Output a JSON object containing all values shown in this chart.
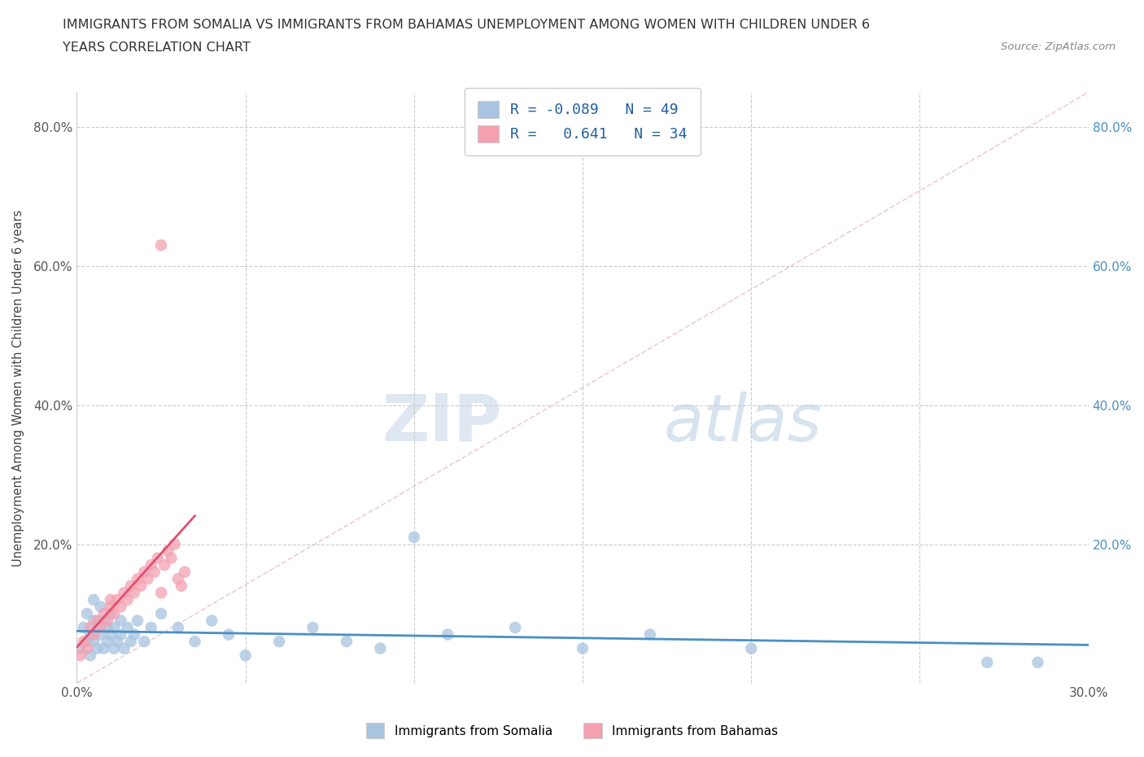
{
  "title_line1": "IMMIGRANTS FROM SOMALIA VS IMMIGRANTS FROM BAHAMAS UNEMPLOYMENT AMONG WOMEN WITH CHILDREN UNDER 6",
  "title_line2": "YEARS CORRELATION CHART",
  "source": "Source: ZipAtlas.com",
  "ylabel": "Unemployment Among Women with Children Under 6 years",
  "xlim": [
    0.0,
    0.3
  ],
  "ylim": [
    0.0,
    0.85
  ],
  "yticks": [
    0.0,
    0.2,
    0.4,
    0.6,
    0.8
  ],
  "xticks": [
    0.0,
    0.05,
    0.1,
    0.15,
    0.2,
    0.25,
    0.3
  ],
  "xtick_labels": [
    "0.0%",
    "",
    "",
    "",
    "",
    "",
    "30.0%"
  ],
  "ytick_labels_left": [
    "",
    "20.0%",
    "40.0%",
    "60.0%",
    "80.0%"
  ],
  "ytick_labels_right": [
    "",
    "20.0%",
    "40.0%",
    "60.0%",
    "80.0%"
  ],
  "legend_somalia": "Immigrants from Somalia",
  "legend_bahamas": "Immigrants from Bahamas",
  "somalia_color": "#a8c4e0",
  "bahamas_color": "#f4a0b0",
  "somalia_line_color": "#4a90c4",
  "bahamas_line_color": "#e05070",
  "diag_color": "#e0b0b8",
  "somalia_r": -0.089,
  "somalia_n": 49,
  "bahamas_r": 0.641,
  "bahamas_n": 34,
  "watermark_zip": "ZIP",
  "watermark_atlas": "atlas",
  "background_color": "#ffffff",
  "somalia_x": [
    0.001,
    0.002,
    0.003,
    0.003,
    0.004,
    0.004,
    0.005,
    0.005,
    0.005,
    0.006,
    0.006,
    0.007,
    0.007,
    0.008,
    0.008,
    0.009,
    0.009,
    0.01,
    0.01,
    0.011,
    0.011,
    0.012,
    0.013,
    0.013,
    0.014,
    0.015,
    0.016,
    0.017,
    0.018,
    0.02,
    0.022,
    0.025,
    0.03,
    0.035,
    0.04,
    0.045,
    0.05,
    0.06,
    0.07,
    0.08,
    0.09,
    0.1,
    0.11,
    0.13,
    0.15,
    0.17,
    0.2,
    0.27,
    0.285
  ],
  "somalia_y": [
    0.05,
    0.08,
    0.06,
    0.1,
    0.04,
    0.07,
    0.06,
    0.09,
    0.12,
    0.05,
    0.08,
    0.07,
    0.11,
    0.05,
    0.09,
    0.06,
    0.08,
    0.07,
    0.1,
    0.05,
    0.08,
    0.06,
    0.07,
    0.09,
    0.05,
    0.08,
    0.06,
    0.07,
    0.09,
    0.06,
    0.08,
    0.1,
    0.08,
    0.06,
    0.09,
    0.07,
    0.04,
    0.06,
    0.08,
    0.06,
    0.05,
    0.21,
    0.07,
    0.08,
    0.05,
    0.07,
    0.05,
    0.03,
    0.03
  ],
  "bahamas_x": [
    0.001,
    0.002,
    0.003,
    0.004,
    0.005,
    0.006,
    0.007,
    0.008,
    0.009,
    0.01,
    0.011,
    0.012,
    0.013,
    0.014,
    0.015,
    0.016,
    0.017,
    0.018,
    0.019,
    0.02,
    0.021,
    0.022,
    0.023,
    0.024,
    0.025,
    0.026,
    0.027,
    0.028,
    0.029,
    0.03,
    0.031,
    0.032,
    0.025,
    0.01
  ],
  "bahamas_y": [
    0.04,
    0.06,
    0.05,
    0.08,
    0.07,
    0.09,
    0.08,
    0.1,
    0.09,
    0.11,
    0.1,
    0.12,
    0.11,
    0.13,
    0.12,
    0.14,
    0.13,
    0.15,
    0.14,
    0.16,
    0.15,
    0.17,
    0.16,
    0.18,
    0.63,
    0.17,
    0.19,
    0.18,
    0.2,
    0.15,
    0.14,
    0.16,
    0.13,
    0.12
  ]
}
